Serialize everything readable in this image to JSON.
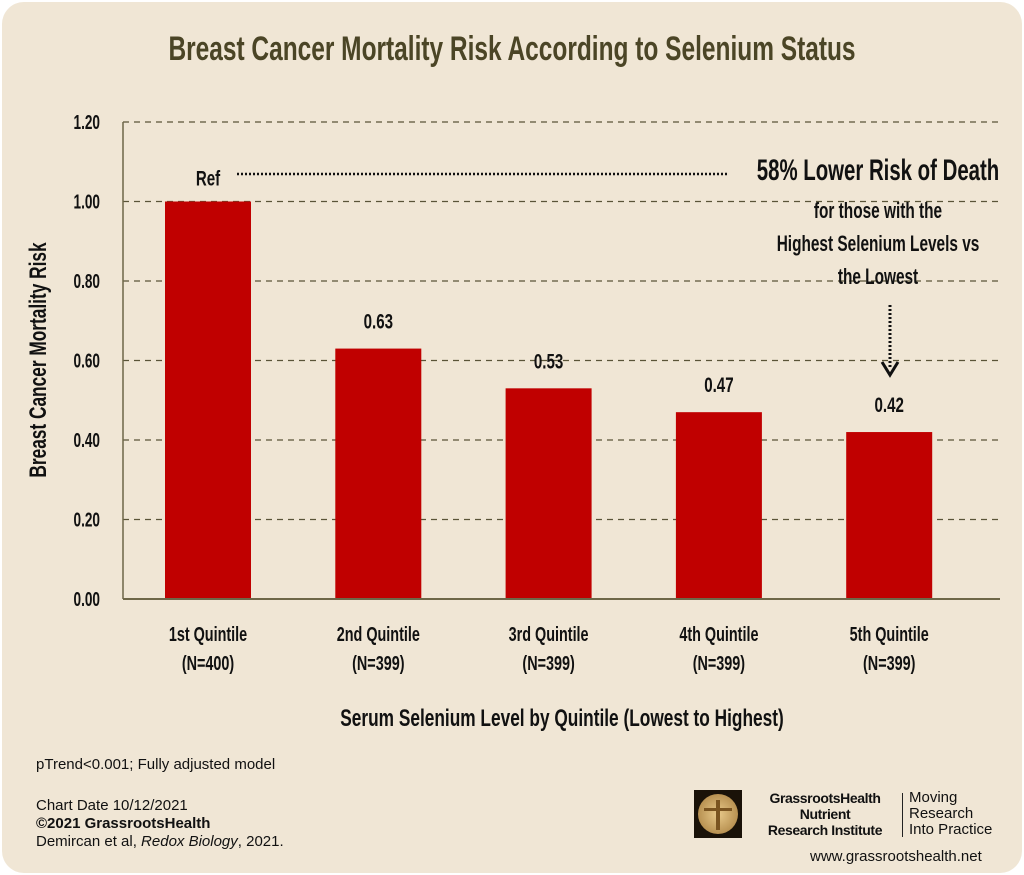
{
  "chart_data": {
    "type": "bar",
    "title": "Breast Cancer Mortality Risk According to Selenium Status",
    "xlabel": "Serum Selenium Level by Quintile (Lowest to Highest)",
    "ylabel": "Breast Cancer Mortality Risk",
    "ylim": [
      0,
      1.2
    ],
    "yticks": [
      "0.00",
      "0.20",
      "0.40",
      "0.60",
      "0.80",
      "1.00",
      "1.20"
    ],
    "grid": true,
    "categories": [
      {
        "label": "1st Quintile",
        "n": "(N=400)"
      },
      {
        "label": "2nd Quintile",
        "n": "(N=399)"
      },
      {
        "label": "3rd Quintile",
        "n": "(N=399)"
      },
      {
        "label": "4th Quintile",
        "n": "(N=399)"
      },
      {
        "label": "5th Quintile",
        "n": "(N=399)"
      }
    ],
    "values": [
      1.0,
      0.63,
      0.53,
      0.47,
      0.42
    ],
    "data_labels": [
      "Ref",
      "0.63",
      "0.53",
      "0.47",
      "0.42"
    ],
    "bar_color": "#c00000",
    "annotation": {
      "headline": "58% Lower Risk of Death",
      "lines": [
        "for those with the",
        "Highest Selenium Levels vs",
        "the Lowest"
      ]
    }
  },
  "colors": {
    "background": "#f0e6d5",
    "title": "#4b4526",
    "grid": "#5a5438"
  },
  "footer": {
    "note": "pTrend<0.001; Fully adjusted model",
    "chart_date": "Chart Date 10/12/2021",
    "copyright": "©2021 GrassrootsHealth",
    "citation_authors": "Demircan et al, ",
    "citation_journal": "Redox Biology",
    "citation_year": ", 2021."
  },
  "logo": {
    "name_line1": "GrassrootsHealth",
    "name_line2": "Nutrient",
    "name_line3": "Research Institute",
    "tagline1": "Moving",
    "tagline2": "Research",
    "tagline3": "Into Practice",
    "url": "www.grassrootshealth.net"
  }
}
